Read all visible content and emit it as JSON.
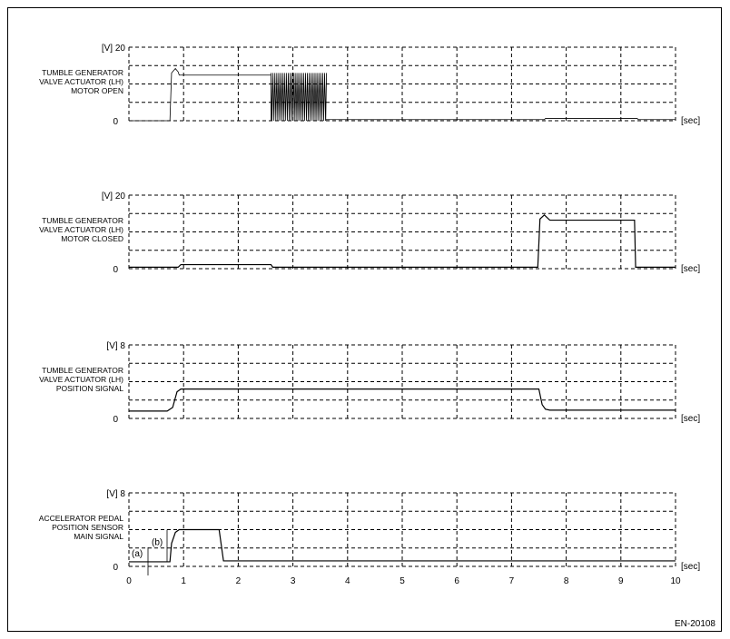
{
  "figure_id": "EN-20108",
  "x_axis": {
    "unit": "[sec]",
    "ticks": [
      "0",
      "1",
      "2",
      "3",
      "4",
      "5",
      "6",
      "7",
      "8",
      "9",
      "10"
    ],
    "range": [
      0,
      10
    ]
  },
  "chart_data": [
    {
      "type": "line",
      "label_lines": [
        "TUMBLE GENERATOR",
        "VALVE ACTUATOR (LH)",
        "MOTOR OPEN"
      ],
      "y_unit": "[V]",
      "y_max_label": "20",
      "y_min_label": "0",
      "ylim": [
        0,
        20
      ],
      "grid": true,
      "points": [
        [
          0,
          0
        ],
        [
          0.75,
          0
        ],
        [
          0.78,
          13
        ],
        [
          0.85,
          14.2
        ],
        [
          0.9,
          13.3
        ],
        [
          0.92,
          12.4
        ],
        [
          2.6,
          12.4
        ],
        [
          2.6,
          0
        ]
      ],
      "pulsed": {
        "start": 2.6,
        "end": 3.6,
        "low": 0,
        "high": 13,
        "period": 0.035
      },
      "points_after": [
        [
          3.6,
          0.3
        ],
        [
          7.6,
          0.3
        ],
        [
          7.62,
          0.6
        ],
        [
          9.3,
          0.6
        ],
        [
          9.32,
          0.3
        ],
        [
          10,
          0.3
        ]
      ]
    },
    {
      "type": "line",
      "label_lines": [
        "TUMBLE GENERATOR",
        "VALVE ACTUATOR (LH)",
        "MOTOR CLOSED"
      ],
      "y_unit": "[V]",
      "y_max_label": "20",
      "y_min_label": "0",
      "ylim": [
        0,
        20
      ],
      "grid": true,
      "points": [
        [
          0,
          0.4
        ],
        [
          0.9,
          0.4
        ],
        [
          0.95,
          1.1
        ],
        [
          2.6,
          1.1
        ],
        [
          2.63,
          0.4
        ],
        [
          7.48,
          0.4
        ],
        [
          7.52,
          13.5
        ],
        [
          7.6,
          14.6
        ],
        [
          7.7,
          13.2
        ],
        [
          9.25,
          13.2
        ],
        [
          9.27,
          0.4
        ],
        [
          10,
          0.4
        ]
      ]
    },
    {
      "type": "line",
      "label_lines": [
        "TUMBLE GENERATOR",
        "VALVE ACTUATOR (LH)",
        "POSITION SIGNAL"
      ],
      "y_unit": "[V]",
      "y_max_label": "8",
      "y_min_label": "0",
      "ylim": [
        0,
        8
      ],
      "grid": true,
      "points": [
        [
          0,
          0.8
        ],
        [
          0.7,
          0.8
        ],
        [
          0.8,
          1.2
        ],
        [
          0.88,
          2.9
        ],
        [
          0.95,
          3.2
        ],
        [
          7.5,
          3.2
        ],
        [
          7.56,
          1.5
        ],
        [
          7.62,
          1.0
        ],
        [
          7.7,
          0.9
        ],
        [
          10,
          0.9
        ]
      ]
    },
    {
      "type": "line",
      "label_lines": [
        "ACCELERATOR PEDAL",
        "POSITION SENSOR",
        "MAIN SIGNAL"
      ],
      "y_unit": "[V]",
      "y_max_label": "8",
      "y_min_label": "0",
      "ylim": [
        0,
        8
      ],
      "grid": true,
      "points": [
        [
          0,
          0.5
        ],
        [
          0.75,
          0.5
        ],
        [
          0.78,
          2.5
        ],
        [
          0.85,
          3.7
        ],
        [
          0.92,
          4.0
        ],
        [
          1.65,
          4.0
        ],
        [
          1.73,
          0.6
        ],
        [
          10,
          0.6
        ]
      ],
      "annotations": [
        "(a)",
        "(b)"
      ]
    }
  ]
}
